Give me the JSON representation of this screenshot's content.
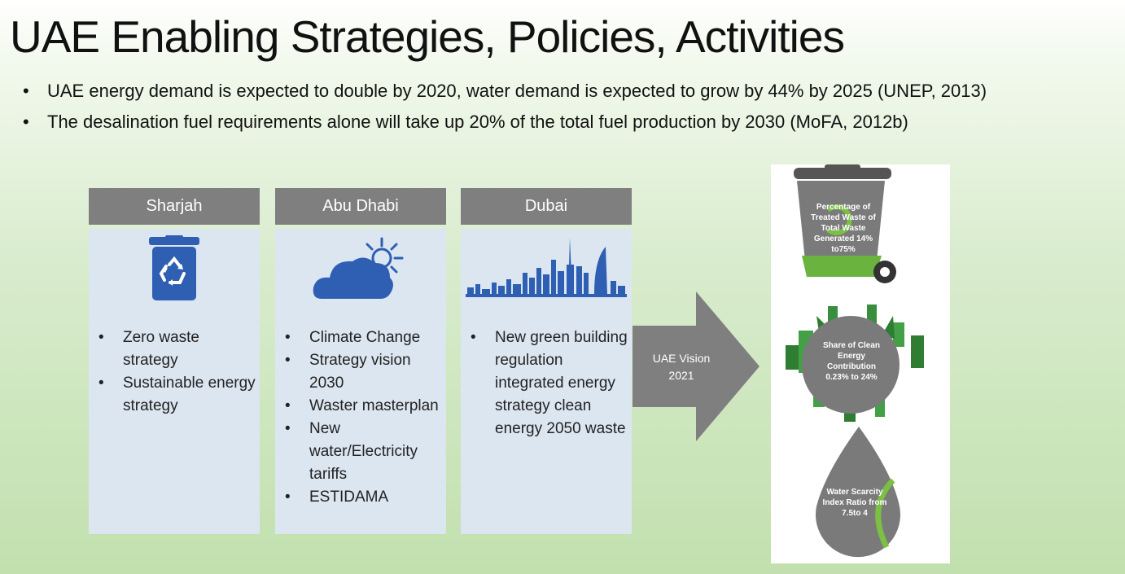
{
  "slide": {
    "title": "UAE Enabling Strategies, Policies, Activities",
    "bullets": [
      "UAE energy demand is expected to double by 2020, water demand is expected to grow by 44% by 2025 (UNEP, 2013)",
      "The desalination fuel requirements alone will take up 20% of the total fuel production by 2030 (MoFA, 2012b)"
    ]
  },
  "columns": [
    {
      "header": "Sharjah",
      "icon": "recycle-bin-icon",
      "items": [
        "Zero waste strategy",
        "Sustainable energy strategy"
      ]
    },
    {
      "header": "Abu Dhabi",
      "icon": "cloud-sun-icon",
      "items": [
        "Climate Change",
        "Strategy vision 2030",
        "Waster masterplan",
        "New water/Electricity tariffs",
        "ESTIDAMA"
      ]
    },
    {
      "header": "Dubai",
      "icon": "city-skyline-icon",
      "items": [
        "New green building regulation integrated energy strategy clean energy 2050 waste"
      ]
    }
  ],
  "arrow": {
    "label": "UAE Vision 2021"
  },
  "infographic": {
    "waste": "Percentage of Treated Waste of Total Waste Generated 14% to75%",
    "energy": "Share of Clean Energy Contribution 0.23% to 24%",
    "water": "Water Scarcity Index Ratio from 7.5to 4"
  },
  "colors": {
    "header_gray": "#7f7f7f",
    "card_blue": "#dce6f1",
    "icon_blue": "#2f5fb3",
    "arrow_gray": "#7f7f7f",
    "accent_green": "#7bc043"
  }
}
